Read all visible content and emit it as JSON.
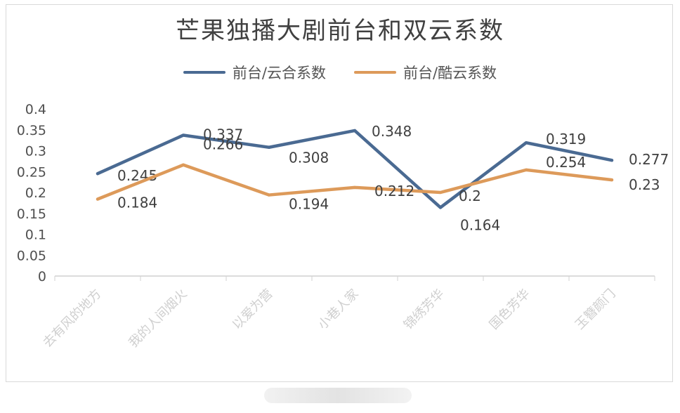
{
  "chart_data": {
    "type": "line",
    "title": "芒果独播大剧前台和双云系数",
    "categories": [
      "去有风的地方",
      "我的人间烟火",
      "以爱为营",
      "小巷人家",
      "锦绣芳华",
      "国色芳华",
      "玉簪颜门"
    ],
    "series": [
      {
        "name": "前台/云合系数",
        "color": "#4a6a92",
        "values": [
          0.245,
          0.337,
          0.308,
          0.348,
          0.164,
          0.319,
          0.277
        ]
      },
      {
        "name": "前台/酷云系数",
        "color": "#dd9a5a",
        "values": [
          0.184,
          0.266,
          0.194,
          0.212,
          0.2,
          0.254,
          0.23
        ]
      }
    ],
    "ylim": [
      0,
      0.4
    ],
    "yticks": [
      "0",
      "0.05",
      "0.1",
      "0.15",
      "0.2",
      "0.25",
      "0.3",
      "0.35",
      "0.4"
    ],
    "grid": false,
    "legend": "top"
  }
}
